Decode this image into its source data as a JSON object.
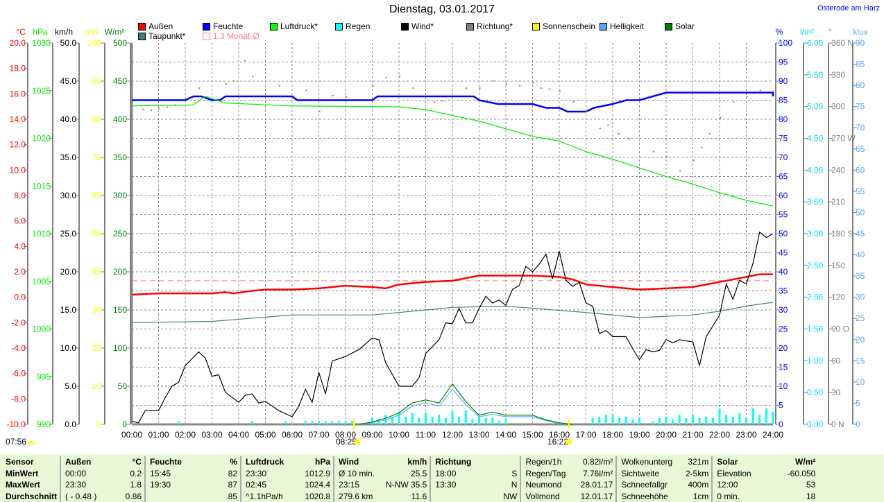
{
  "title": "Dienstag, 03.01.2017",
  "location": "Osterode am Harz",
  "legend": [
    {
      "label": "Außen",
      "color": "#ff0000"
    },
    {
      "label": "Feuchte",
      "color": "#0000ff"
    },
    {
      "label": "Luftdruck*",
      "color": "#00ff00"
    },
    {
      "label": "Regen",
      "color": "#00ffff"
    },
    {
      "label": "Wind*",
      "color": "#000000"
    },
    {
      "label": "Richtung*",
      "color": "#808080"
    },
    {
      "label": "Sonnenschein",
      "color": "#ffff00"
    },
    {
      "label": "Helligkeit",
      "color": "#55aaff"
    },
    {
      "label": "Solar",
      "color": "#008000"
    },
    {
      "label": "Taupunkt*",
      "color": "#408080"
    },
    {
      "label": "1.3 Monat-Ø",
      "color": "#ff8080"
    }
  ],
  "sun": {
    "left_time": "07:56",
    "sunrise": "08:25",
    "sunset": "16:22"
  },
  "chart_data": {
    "type": "line",
    "title": "Dienstag, 03.01.2017",
    "xlabel": "",
    "xlim": [
      0,
      24
    ],
    "x_ticks": [
      "00:00",
      "01:00",
      "02:00",
      "03:00",
      "04:00",
      "05:00",
      "06:00",
      "07:00",
      "08:00",
      "09:00",
      "10:00",
      "11:00",
      "12:00",
      "13:00",
      "14:00",
      "15:00",
      "16:00",
      "17:00",
      "18:00",
      "19:00",
      "20:00",
      "21:00",
      "22:00",
      "23:00",
      "24:00"
    ],
    "axes": [
      {
        "unit": "°C",
        "color": "#ff0000",
        "ylim": [
          -10,
          20
        ],
        "ticks": [
          "20.0",
          "18.0",
          "16.0",
          "14.0",
          "12.0",
          "10.0",
          "8.0",
          "6.0",
          "4.0",
          "2.0",
          "0.0",
          "-2.0",
          "-4.0",
          "-6.0",
          "-8.0",
          "-10.0"
        ]
      },
      {
        "unit": "hPa",
        "color": "#00ee00",
        "ylim": [
          990,
          1030
        ],
        "ticks": [
          "1030",
          "1025",
          "1020",
          "1015",
          "1010",
          "1005",
          "1000",
          "995",
          "990"
        ]
      },
      {
        "unit": "km/h",
        "color": "#000000",
        "ylim": [
          0,
          50
        ],
        "ticks": [
          "50.0",
          "45.0",
          "40.0",
          "35.0",
          "30.0",
          "25.0",
          "20.0",
          "15.0",
          "10.0",
          "5.0",
          "0.0"
        ]
      },
      {
        "unit": "min",
        "color": "#ffff00",
        "ylim": [
          0,
          100
        ],
        "ticks": [
          "100",
          "90",
          "80",
          "70",
          "60",
          "50",
          "40",
          "30",
          "20",
          "10",
          "0"
        ]
      },
      {
        "unit": "W/m²",
        "color": "#008000",
        "ylim": [
          0,
          500
        ],
        "ticks": [
          "500",
          "450",
          "400",
          "350",
          "300",
          "250",
          "200",
          "150",
          "100",
          "50",
          "0"
        ]
      },
      {
        "unit": "%",
        "color": "#0000ff",
        "ylim": [
          0,
          100
        ],
        "ticks": [
          "100",
          "95",
          "90",
          "85",
          "80",
          "75",
          "70",
          "65",
          "60",
          "55",
          "50",
          "45",
          "40",
          "35",
          "30",
          "25",
          "20",
          "15",
          "10",
          "5",
          "0"
        ]
      },
      {
        "unit": "l/m²",
        "color": "#00dddd",
        "ylim": [
          0,
          6
        ],
        "ticks": [
          "6.00",
          "5.50",
          "5.00",
          "4.50",
          "4.00",
          "3.50",
          "3.00",
          "2.50",
          "2.00",
          "1.50",
          "1.00",
          "0.50",
          "0.00"
        ]
      },
      {
        "unit": "°",
        "color": "#808080",
        "ylim": [
          0,
          360
        ],
        "ticks": [
          "360 N",
          "330",
          "300",
          "270 W",
          "240",
          "210",
          "180 S",
          "150",
          "120",
          "90 O",
          "60",
          "30",
          "0 N"
        ]
      },
      {
        "unit": "klux",
        "color": "#55aaff",
        "ylim": [
          0,
          90
        ],
        "ticks": [
          "90",
          "85",
          "80",
          "75",
          "70",
          "65",
          "60",
          "55",
          "50",
          "45",
          "40",
          "35",
          "30",
          "25",
          "20",
          "15",
          "10",
          "5",
          "0"
        ]
      }
    ],
    "series": [
      {
        "name": "Außen",
        "axis": 0,
        "color": "#ff0000",
        "x": [
          0,
          1,
          2,
          3,
          3.5,
          3.8,
          4.5,
          5,
          6,
          7,
          8,
          9,
          9.5,
          10,
          11,
          12,
          12.5,
          13,
          14,
          15,
          16,
          16.5,
          17,
          18,
          19,
          20,
          21,
          22,
          23,
          23.5,
          24
        ],
        "y": [
          0.2,
          0.3,
          0.3,
          0.3,
          0.4,
          0.3,
          0.5,
          0.6,
          0.6,
          0.7,
          0.9,
          0.8,
          0.7,
          1.0,
          1.2,
          1.3,
          1.5,
          1.7,
          1.7,
          1.7,
          1.6,
          1.4,
          1.0,
          0.8,
          0.6,
          0.7,
          0.8,
          1.2,
          1.6,
          1.8,
          1.8
        ]
      },
      {
        "name": "Taupunkt*",
        "axis": 0,
        "color": "#408080",
        "x": [
          0,
          3,
          6,
          9,
          12,
          14,
          17,
          19,
          21,
          22,
          23,
          24
        ],
        "y": [
          -2.0,
          -1.9,
          -1.4,
          -1.4,
          -0.8,
          -0.7,
          -1.2,
          -1.6,
          -1.4,
          -1.1,
          -0.7,
          -0.4
        ]
      },
      {
        "name": "Feuchte",
        "axis": 5,
        "color": "#0000ff",
        "x": [
          0,
          2,
          2.3,
          2.6,
          3,
          3.3,
          3.5,
          6,
          6.2,
          7,
          7.2,
          9,
          9.2,
          12.8,
          13,
          13.7,
          15,
          15.5,
          16,
          16.3,
          17,
          17.3,
          18,
          18.5,
          19,
          19.5,
          20,
          24,
          24
        ],
        "y": [
          85,
          85,
          86,
          86,
          85,
          85,
          86,
          86,
          85,
          85,
          85,
          85,
          86,
          86,
          85,
          84,
          84,
          83,
          83,
          82,
          82,
          83,
          84,
          85,
          85,
          86,
          87,
          87,
          86
        ]
      },
      {
        "name": "Luftdruck*",
        "axis": 1,
        "color": "#00ee00",
        "x": [
          0,
          2.3,
          2.75,
          3.5,
          6,
          10,
          11,
          12,
          13,
          14,
          15,
          16,
          17,
          18,
          19,
          20,
          21,
          22,
          23,
          24
        ],
        "y": [
          1023.4,
          1023.5,
          1024.4,
          1023.7,
          1023.4,
          1023.3,
          1023,
          1022.4,
          1021.8,
          1021,
          1020.2,
          1019.7,
          1018.6,
          1017.8,
          1016.9,
          1016,
          1015.2,
          1014.3,
          1013.5,
          1012.9
        ]
      },
      {
        "name": "Wind*",
        "axis": 2,
        "color": "#000000",
        "x": [
          0,
          0.25,
          0.5,
          1,
          1.25,
          1.5,
          1.75,
          2,
          2.5,
          2.75,
          3,
          3.25,
          3.5,
          4,
          4.25,
          4.5,
          4.75,
          5,
          5.5,
          6,
          6.25,
          6.5,
          6.75,
          7,
          7.25,
          7.5,
          8,
          8.5,
          9,
          9.25,
          9.5,
          10,
          10.5,
          10.75,
          11,
          11.5,
          11.75,
          12,
          12.25,
          12.5,
          12.75,
          13,
          13.25,
          13.5,
          13.75,
          14,
          14.25,
          14.5,
          14.75,
          15,
          15.25,
          15.5,
          15.75,
          16,
          16.25,
          16.5,
          16.75,
          17,
          17.25,
          17.5,
          17.75,
          18,
          18.5,
          18.75,
          19,
          19.25,
          19.5,
          19.75,
          20,
          20.25,
          20.5,
          21,
          21.25,
          21.5,
          22,
          22.25,
          22.5,
          22.75,
          23,
          23.25,
          23.5,
          23.75,
          24
        ],
        "y": [
          0.4,
          0.2,
          1.8,
          1.8,
          3.5,
          5,
          5.5,
          7.7,
          9.5,
          8.7,
          6.3,
          6.5,
          4.2,
          2.9,
          3.8,
          4,
          2.8,
          3,
          1.8,
          1,
          2.4,
          4.6,
          2.9,
          6.8,
          4,
          8.3,
          8.9,
          9.8,
          11.3,
          11.1,
          8.1,
          5,
          5,
          6.1,
          9.3,
          11.1,
          13.3,
          13.2,
          15.2,
          13.3,
          13.3,
          15.2,
          16.8,
          15.9,
          16.3,
          15.6,
          17.7,
          18.2,
          20.7,
          20,
          21,
          22.3,
          19.1,
          22.7,
          18.9,
          18.1,
          18.6,
          15.9,
          15.5,
          11.9,
          12.3,
          11.5,
          11.5,
          9.9,
          8.5,
          9.8,
          9.5,
          9.7,
          11.1,
          10.7,
          11.1,
          10.8,
          7.7,
          11.5,
          14.3,
          18.4,
          16.4,
          18.9,
          18.4,
          21.1,
          25.2,
          24.5,
          25
        ]
      },
      {
        "name": "Helligkeit",
        "axis": 4,
        "color": "#55aaff",
        "x": [
          8.5,
          9,
          9.5,
          10,
          10.5,
          11,
          11.5,
          12,
          12.5,
          13,
          13.5,
          14,
          15,
          15.5,
          16,
          16.5
        ],
        "y": [
          0,
          2,
          6,
          12,
          24,
          28,
          24,
          46,
          26,
          10,
          13,
          10,
          10,
          5,
          1,
          0
        ]
      },
      {
        "name": "Solar",
        "axis": 4,
        "color": "#008000",
        "x": [
          8.5,
          9,
          9.5,
          10,
          10.5,
          11,
          11.5,
          12,
          12.5,
          13,
          13.5,
          14,
          15,
          15.5,
          16,
          16.5
        ],
        "y": [
          0,
          3,
          8,
          15,
          28,
          32,
          28,
          53,
          30,
          12,
          16,
          12,
          12,
          6,
          2,
          0
        ]
      }
    ],
    "richtung": {
      "axis": 7,
      "color": "#808080",
      "x": [
        0.4,
        0.7,
        1,
        1.3,
        1.6,
        2.5,
        3.5,
        3.8,
        4.2,
        4.5,
        5.5,
        6.5,
        7,
        7.5,
        8,
        9,
        9.5,
        10,
        10.5,
        11.3,
        11.6,
        12.5,
        13,
        13.5,
        14,
        14.5,
        15,
        15.3,
        15.6,
        16,
        16.5,
        17,
        17.5,
        17.8,
        18.2,
        18.6,
        19.5,
        20,
        20.5,
        21,
        21.3,
        21.6,
        22,
        22.5,
        23,
        23.5
      ],
      "y": [
        298,
        297,
        299,
        300,
        302,
        318,
        322,
        325,
        344,
        329,
        320,
        316,
        296,
        311,
        310,
        320,
        328,
        329,
        318,
        305,
        306,
        318,
        318,
        325,
        322,
        320,
        323,
        318,
        317,
        315,
        305,
        296,
        280,
        283,
        275,
        270,
        258,
        253,
        240,
        250,
        262,
        275,
        290,
        305,
        310,
        316
      ]
    },
    "regen": {
      "axis": 6,
      "color": "#00ffff",
      "x": [
        1.75,
        4.5,
        5.75,
        6.5,
        6.75,
        7,
        7.25,
        7.5,
        7.75,
        8,
        8.25,
        9,
        9.25,
        9.5,
        9.75,
        10,
        10.25,
        10.5,
        10.75,
        11,
        11.25,
        11.5,
        11.75,
        12,
        12.25,
        12.5,
        12.75,
        13,
        13.25,
        13.5,
        13.75,
        14,
        17.25,
        17.5,
        17.75,
        18,
        18.25,
        18.5,
        18.75,
        19,
        19.5,
        19.75,
        20,
        20.25,
        20.5,
        20.75,
        21,
        21.25,
        21.5,
        21.75,
        22,
        22.25,
        22.5,
        22.75,
        23,
        23.25,
        23.5,
        23.75,
        24
      ],
      "y": [
        0.05,
        0.05,
        0.05,
        0.05,
        0.05,
        0.05,
        0.05,
        0.05,
        0.05,
        0.05,
        0.05,
        0.1,
        0.08,
        0.15,
        0.12,
        0.2,
        0.12,
        0.18,
        0.1,
        0.18,
        0.12,
        0.15,
        0.1,
        0.2,
        0.12,
        0.22,
        0.08,
        0.12,
        0.1,
        0.1,
        0.05,
        0.08,
        0.1,
        0.12,
        0.15,
        0.15,
        0.1,
        0.12,
        0.08,
        0.1,
        0.05,
        0.1,
        0.12,
        0.08,
        0.15,
        0.1,
        0.15,
        0.1,
        0.12,
        0.1,
        0.25,
        0.15,
        0.12,
        0.18,
        0.1,
        0.25,
        0.15,
        0.25,
        0.2
      ]
    },
    "monat_avg": {
      "axis": 0,
      "value": 1.3,
      "color": "#ff8080"
    }
  },
  "table": {
    "rows": [
      [
        "Sensor",
        "Außen",
        "°C",
        "Feuchte",
        "%",
        "Luftdruck",
        "hPa",
        "Wind",
        "km/h",
        "Richtung",
        "",
        "Regen/1h",
        "0.82l/m²",
        "Wolkenunterg",
        "321m",
        "Solar",
        "W/m²"
      ],
      [
        "MinWert",
        "00:00",
        "0.2",
        "15:45",
        "82",
        "23:30",
        "1012.9",
        "Ø 10 min.",
        "25.5",
        "18:00",
        "S",
        "Regen/Tag",
        "7.76l/m²",
        "Sichtweite",
        "2-5km",
        "Elevation",
        "-60.050"
      ],
      [
        "MaxWert",
        "23:30",
        "1.8",
        "19:30",
        "87",
        "02:45",
        "1024.4",
        "23:15",
        "N-NW 35.5",
        "13:30",
        "N",
        "Neumond",
        "28.01.17",
        "Schneefallgr",
        "400m",
        "12:00",
        "53"
      ],
      [
        "Durchschnitt",
        "( - 0.48 )",
        "0.86",
        "",
        "85",
        "^1.1hPa/h",
        "1020.8",
        "279.6 km",
        "11.6",
        "",
        "NW",
        "Vollmond",
        "12.01.17",
        "Schneehöhe",
        "1cm",
        "0 min.",
        "18"
      ]
    ]
  }
}
